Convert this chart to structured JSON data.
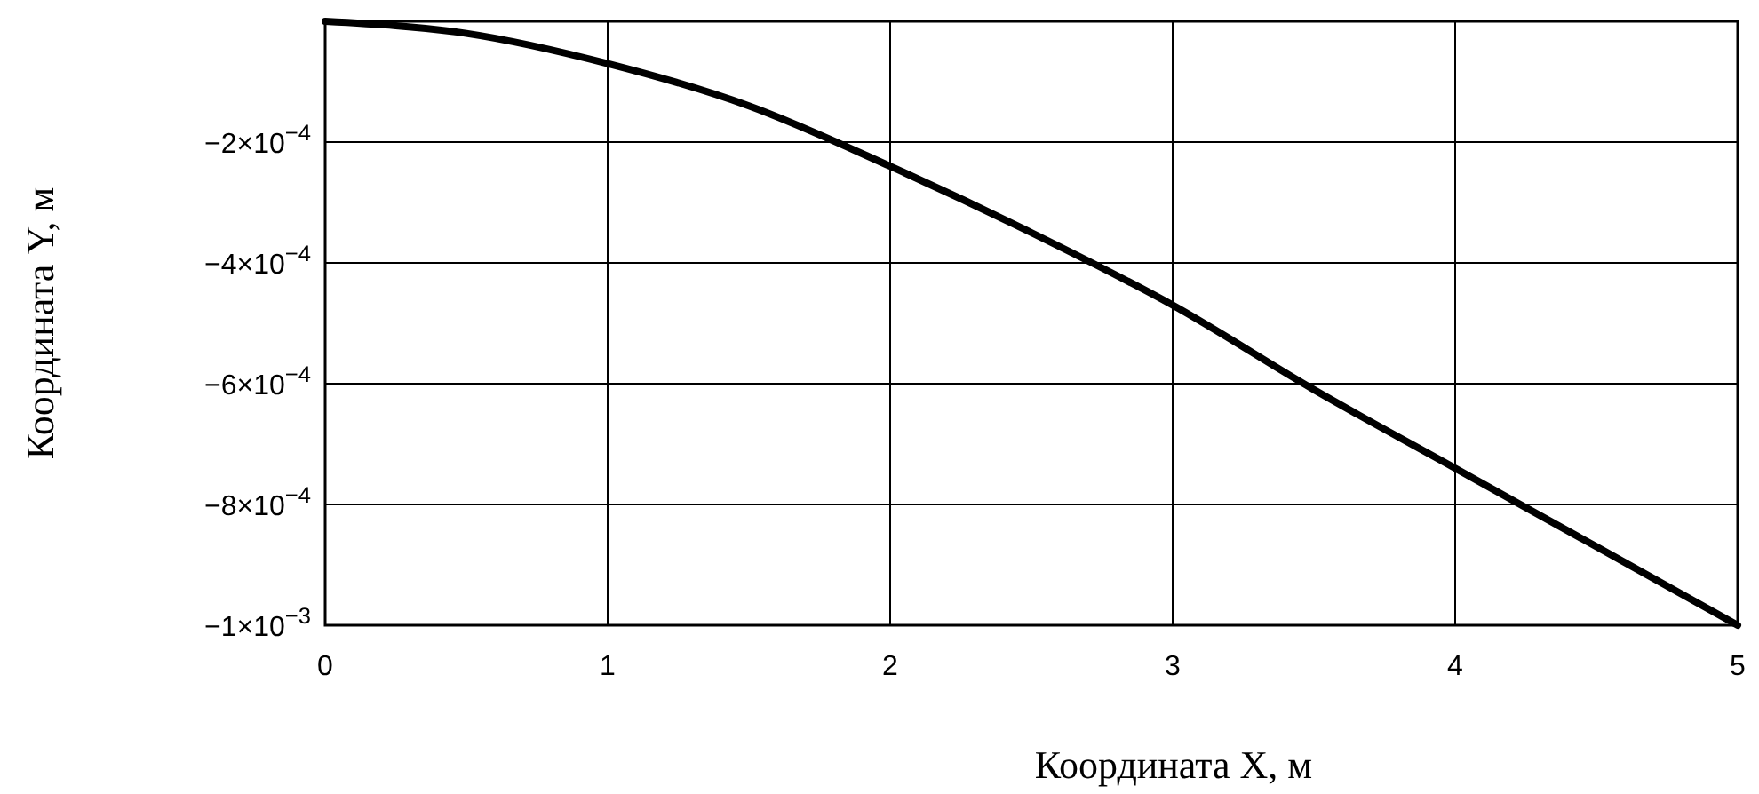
{
  "chart_data": {
    "type": "line",
    "xlabel": "Координата X, м",
    "ylabel": "Координата Y, м",
    "x": [
      0,
      0.5,
      1,
      1.5,
      2,
      2.5,
      3,
      3.5,
      4,
      4.5,
      5
    ],
    "series": [
      {
        "color": "#000000",
        "values": [
          0,
          -2e-05,
          -7e-05,
          -0.00014,
          -0.00024,
          -0.00035,
          -0.00047,
          -0.00061,
          -0.00074,
          -0.00087,
          -0.001
        ]
      }
    ],
    "xlim": [
      0,
      5
    ],
    "xticks": [
      0,
      1,
      2,
      3,
      4,
      5
    ],
    "ylim": [
      -0.001,
      0
    ],
    "yticks": [
      {
        "value": -0.0002,
        "label": "−2×10$^{−4}$"
      },
      {
        "value": -0.0004,
        "label": "−4×10$^{−4}$"
      },
      {
        "value": -0.0006,
        "label": "−6×10$^{−4}$"
      },
      {
        "value": -0.0008,
        "label": "−8×10$^{−4}$"
      },
      {
        "value": -0.001,
        "label": "−1×10$^{−3}$"
      }
    ],
    "grid": true,
    "marker": "none",
    "line_style": "solid"
  }
}
